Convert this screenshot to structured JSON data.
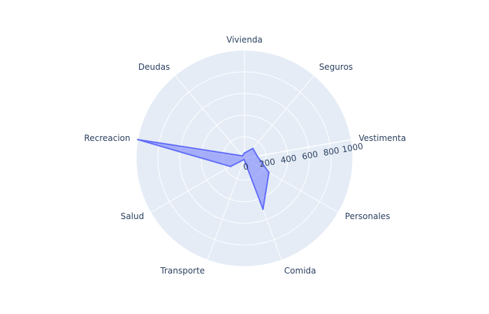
{
  "chart_data": {
    "type": "radar",
    "categories": [
      "Vestimenta",
      "Seguros",
      "Vivienda",
      "Deudas",
      "Recreacion",
      "Salud",
      "Transporte",
      "Comida",
      "Personales"
    ],
    "series": [
      {
        "values": [
          120,
          120,
          50,
          30,
          1000,
          150,
          10,
          500,
          260
        ],
        "fill_color": "rgba(99,110,250,0.5)",
        "line_color": "#636efa"
      }
    ],
    "radial_range": [
      0,
      1000
    ],
    "radial_ticks": [
      0,
      200,
      400,
      600,
      800,
      1000
    ],
    "radial_tick_labels": [
      "0",
      "200",
      "400",
      "600",
      "800",
      "1000"
    ],
    "angular_direction": "counterclockwise",
    "rotation_deg": 10,
    "grid": true,
    "background_color": "#e5ecf6",
    "grid_color": "#ffffff",
    "text_color": "#2a3f5f"
  }
}
